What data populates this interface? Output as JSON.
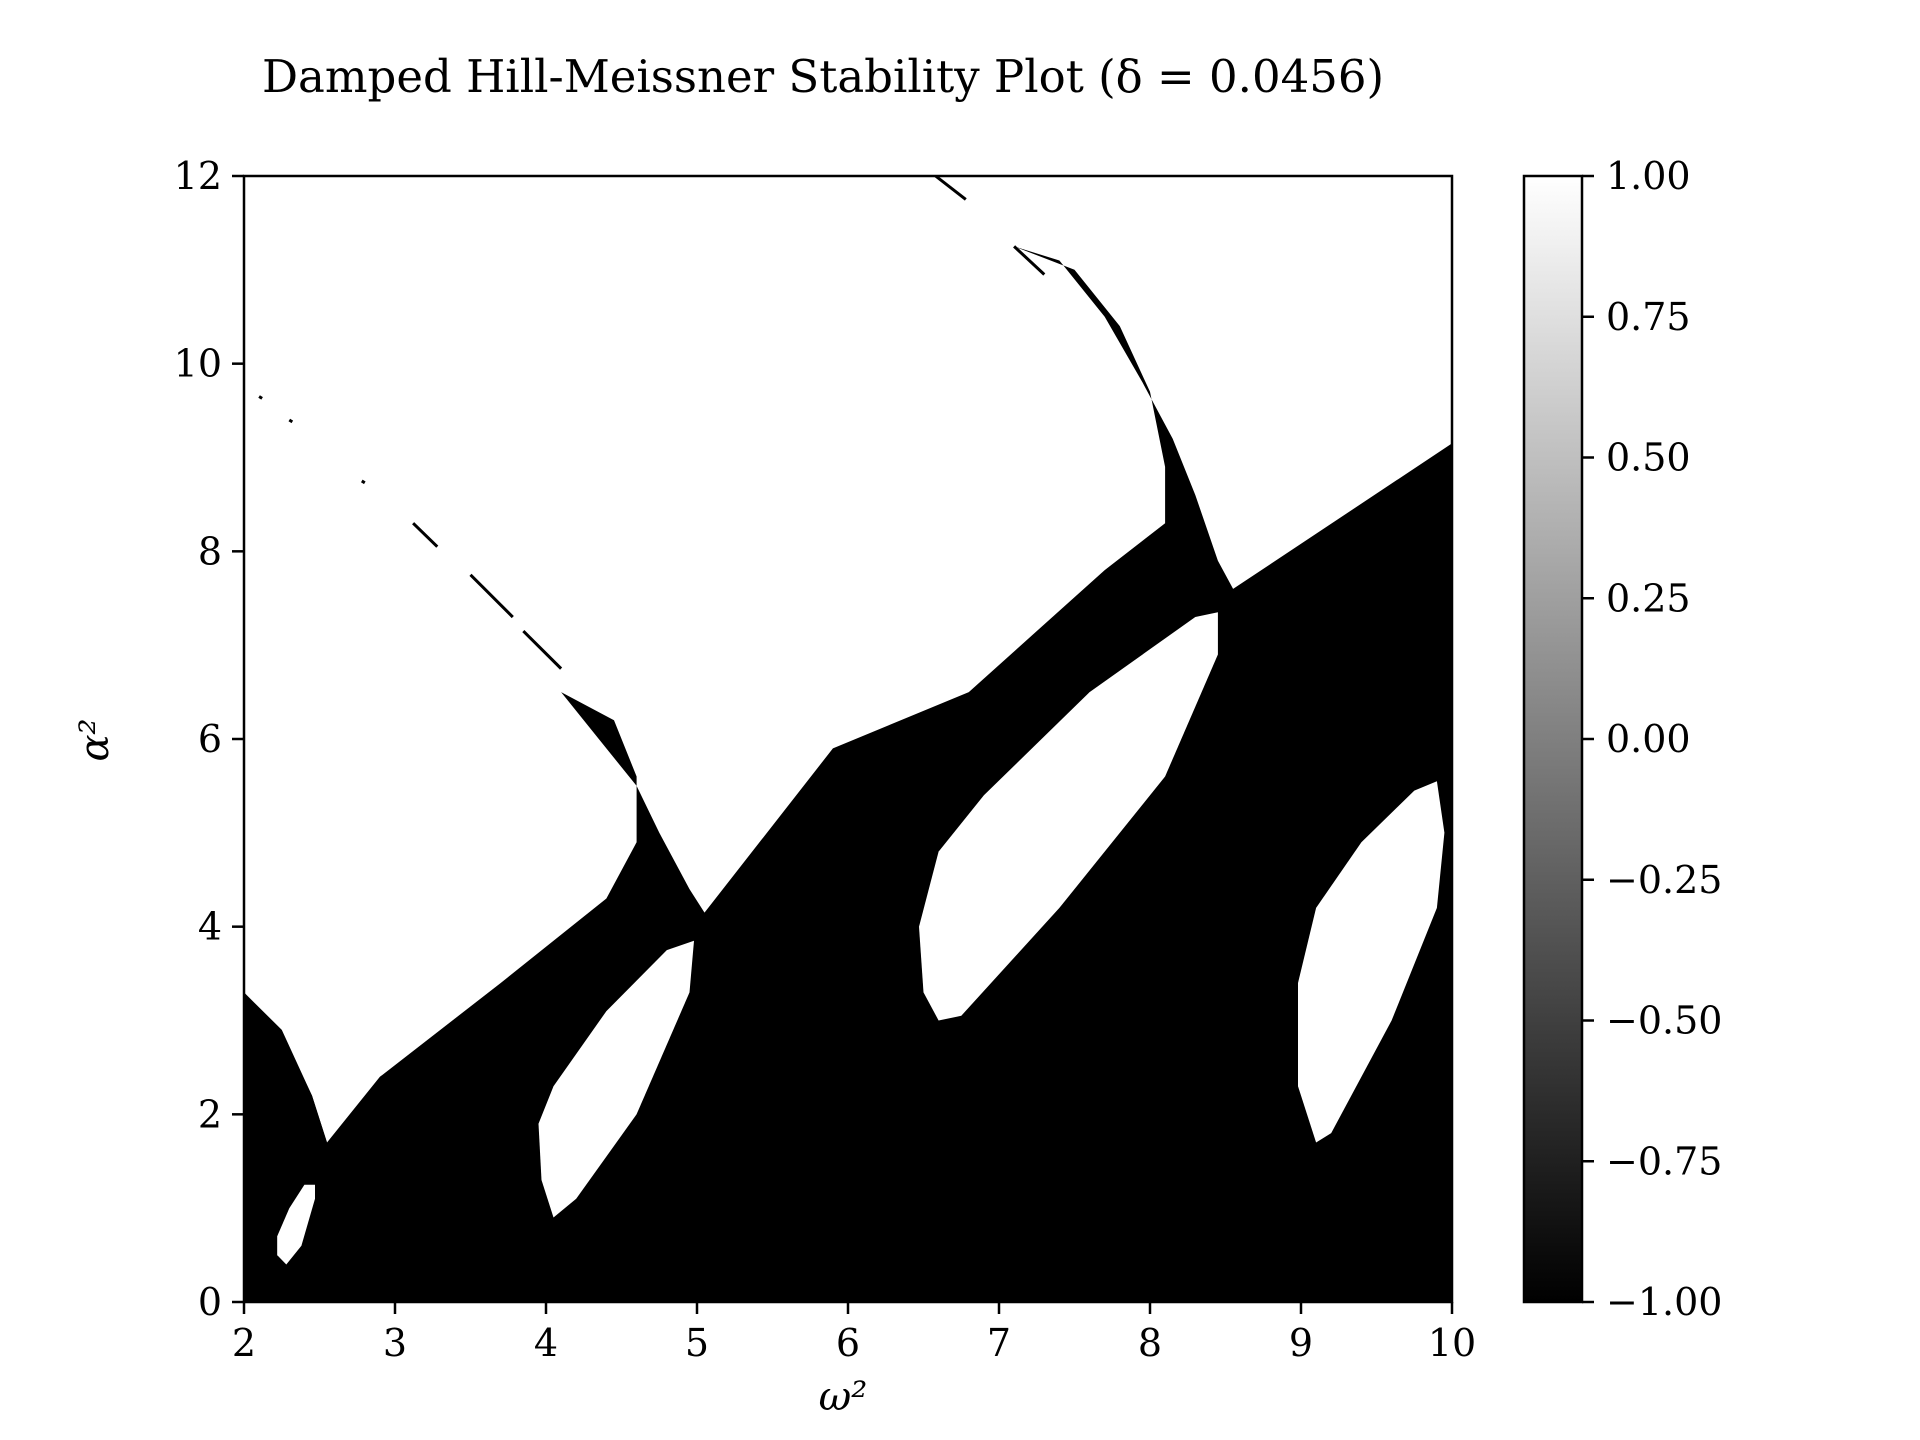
{
  "chart_data": {
    "type": "heatmap",
    "title": "Damped Hill-Meissner Stability Plot (δ = 0.0456)",
    "xlabel": "ω²",
    "ylabel": "α²",
    "xlim": [
      2,
      10
    ],
    "ylim": [
      0,
      12
    ],
    "x_ticks": [
      "2",
      "3",
      "4",
      "5",
      "6",
      "7",
      "8",
      "9",
      "10"
    ],
    "y_ticks": [
      "0",
      "2",
      "4",
      "6",
      "8",
      "10",
      "12"
    ],
    "colorbar": {
      "range": [
        -1.0,
        1.0
      ],
      "colormap": "grayscale",
      "tick_labels": [
        "1.00",
        "0.75",
        "0.50",
        "0.25",
        "0.00",
        "−0.25",
        "−0.50",
        "−0.75",
        "−1.00"
      ]
    },
    "values_legend": {
      "stable": 1.0,
      "unstable": -1.0
    },
    "regions": [
      {
        "name": "unstable-band-main",
        "value": -1,
        "polygon": [
          [
            2,
            0
          ],
          [
            10,
            0
          ],
          [
            10,
            9.15
          ],
          [
            8.55,
            7.6
          ],
          [
            8.45,
            7.9
          ],
          [
            8.3,
            8.6
          ],
          [
            8.15,
            9.2
          ],
          [
            7.95,
            9.8
          ],
          [
            7.7,
            10.5
          ],
          [
            7.4,
            11.1
          ],
          [
            7.1,
            11.25
          ],
          [
            7.5,
            11.0
          ],
          [
            7.8,
            10.4
          ],
          [
            8.0,
            9.7
          ],
          [
            8.1,
            8.9
          ],
          [
            8.1,
            8.3
          ],
          [
            7.7,
            7.8
          ],
          [
            6.8,
            6.5
          ],
          [
            5.9,
            5.9
          ],
          [
            5.05,
            4.15
          ],
          [
            4.95,
            4.4
          ],
          [
            4.75,
            5.0
          ],
          [
            4.6,
            5.5
          ],
          [
            4.35,
            6.0
          ],
          [
            4.1,
            6.5
          ],
          [
            4.45,
            6.2
          ],
          [
            4.6,
            5.6
          ],
          [
            4.6,
            4.9
          ],
          [
            4.4,
            4.3
          ],
          [
            3.7,
            3.4
          ],
          [
            2.9,
            2.4
          ],
          [
            2.55,
            1.7
          ],
          [
            2.45,
            2.2
          ],
          [
            2.3,
            2.7
          ],
          [
            2.0,
            3.3
          ],
          [
            2.0,
            0
          ]
        ]
      },
      {
        "name": "unstable-wedge-1",
        "value": -1,
        "polygon": [
          [
            2.0,
            3.3
          ],
          [
            2.25,
            2.9
          ],
          [
            2.45,
            2.2
          ],
          [
            2.55,
            1.7
          ],
          [
            2.1,
            2.0
          ],
          [
            2.0,
            2.0
          ]
        ]
      }
    ],
    "stable_islands": [
      {
        "name": "island-1",
        "value": 1,
        "polygon": [
          [
            2.22,
            0.5
          ],
          [
            2.28,
            0.4
          ],
          [
            2.38,
            0.6
          ],
          [
            2.47,
            1.1
          ],
          [
            2.47,
            1.25
          ],
          [
            2.4,
            1.25
          ],
          [
            2.3,
            1.0
          ],
          [
            2.22,
            0.7
          ]
        ]
      },
      {
        "name": "island-2",
        "value": 1,
        "polygon": [
          [
            4.05,
            0.9
          ],
          [
            4.2,
            1.1
          ],
          [
            4.6,
            2.0
          ],
          [
            4.95,
            3.3
          ],
          [
            4.98,
            3.85
          ],
          [
            4.8,
            3.75
          ],
          [
            4.4,
            3.1
          ],
          [
            4.05,
            2.3
          ],
          [
            3.95,
            1.9
          ],
          [
            3.97,
            1.3
          ]
        ]
      },
      {
        "name": "island-3",
        "value": 1,
        "polygon": [
          [
            6.6,
            3.0
          ],
          [
            6.75,
            3.05
          ],
          [
            7.4,
            4.2
          ],
          [
            8.1,
            5.6
          ],
          [
            8.45,
            6.9
          ],
          [
            8.45,
            7.35
          ],
          [
            8.3,
            7.3
          ],
          [
            7.6,
            6.5
          ],
          [
            6.9,
            5.4
          ],
          [
            6.6,
            4.8
          ],
          [
            6.47,
            4.0
          ],
          [
            6.5,
            3.3
          ]
        ]
      },
      {
        "name": "island-4",
        "value": 1,
        "polygon": [
          [
            9.1,
            1.7
          ],
          [
            9.2,
            1.8
          ],
          [
            9.6,
            3.0
          ],
          [
            9.9,
            4.2
          ],
          [
            9.95,
            5.0
          ],
          [
            9.9,
            5.55
          ],
          [
            9.75,
            5.45
          ],
          [
            9.4,
            4.9
          ],
          [
            9.1,
            4.2
          ],
          [
            8.98,
            3.4
          ],
          [
            8.98,
            2.3
          ]
        ]
      }
    ],
    "stable_background": {
      "value": 1
    },
    "grid": false
  }
}
